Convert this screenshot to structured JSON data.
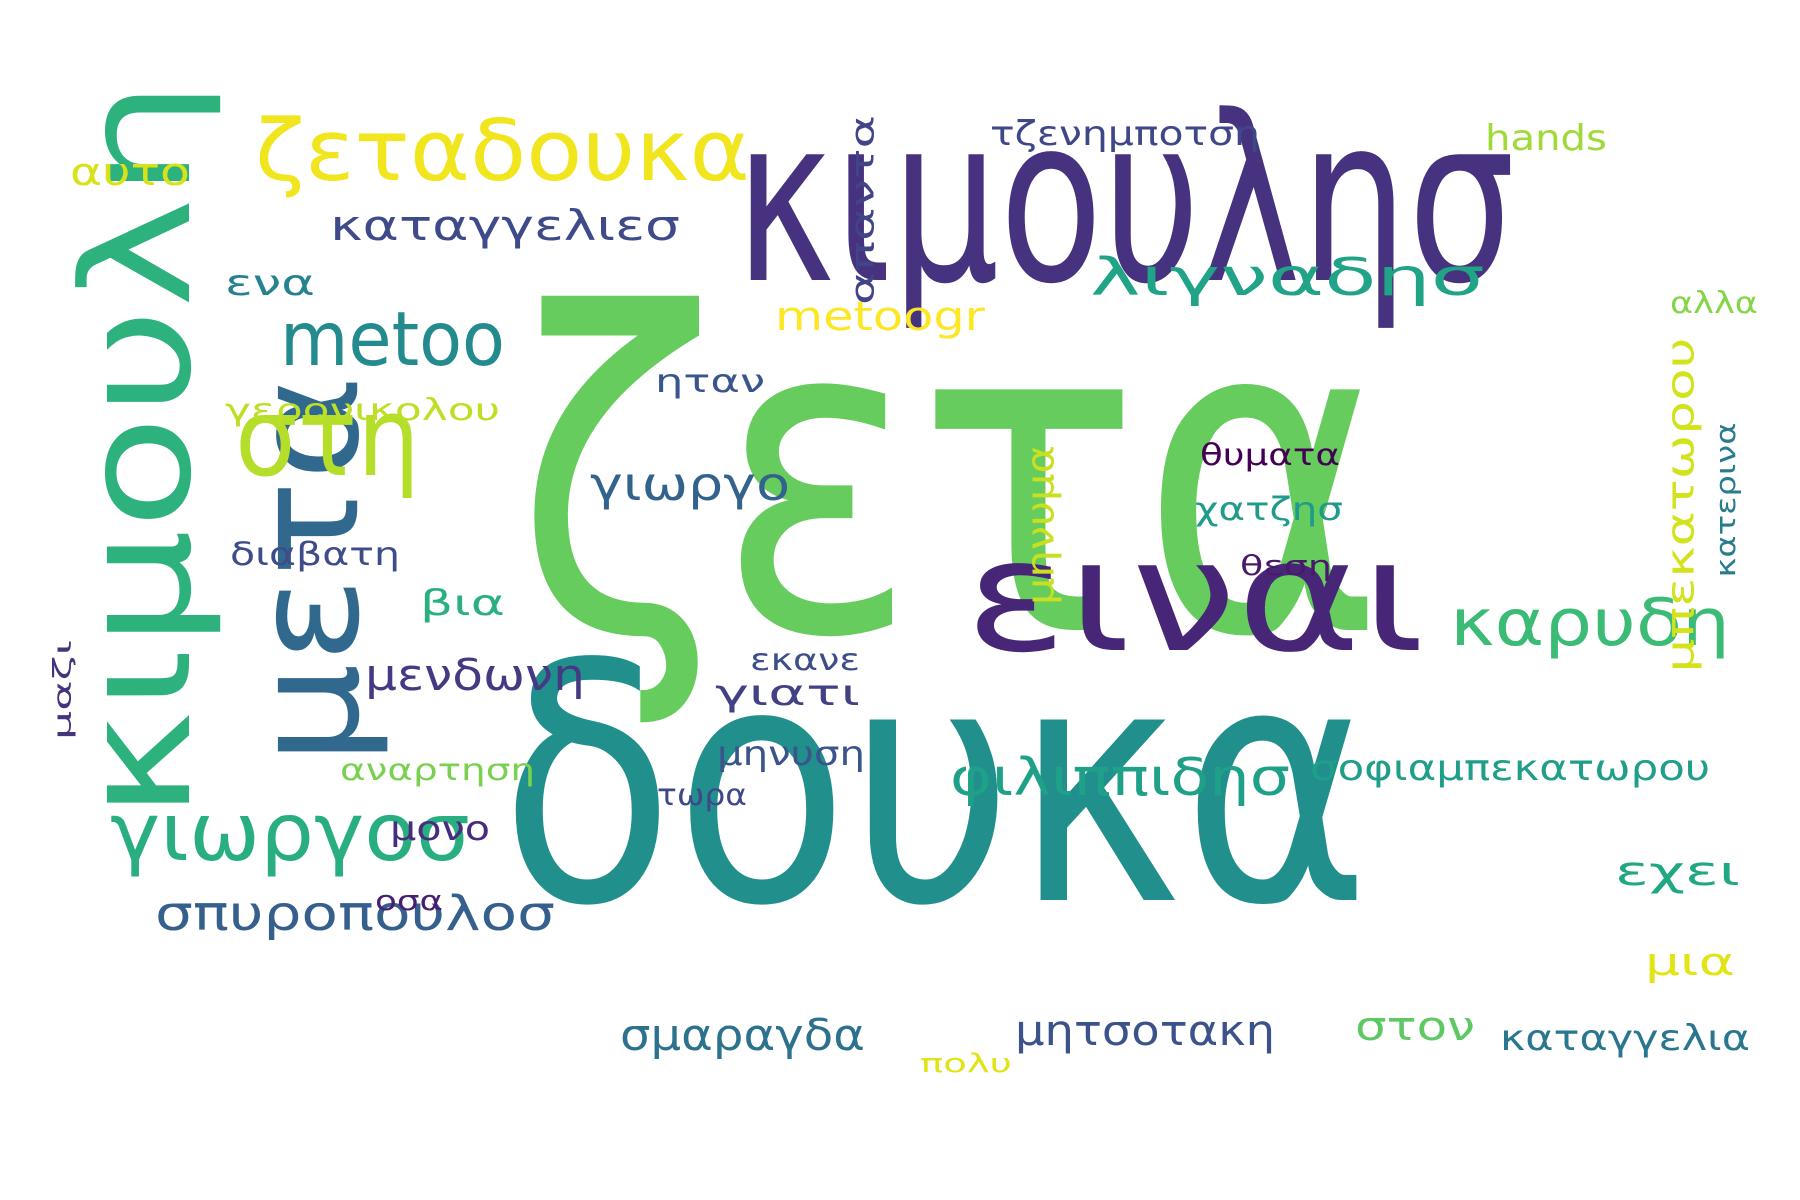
{
  "word_cloud": {
    "words": [
      {
        "text": "ζετα",
        "color": "#66cc5e",
        "rotated": false
      },
      {
        "text": "δουκα",
        "color": "#21908c",
        "rotated": false
      },
      {
        "text": "κιμουλησ",
        "color": "#46327e",
        "rotated": false
      },
      {
        "text": "κιμουλη",
        "color": "#2db27d",
        "rotated": true
      },
      {
        "text": "ειναι",
        "color": "#482677",
        "rotated": false
      },
      {
        "text": "μετα",
        "color": "#31688e",
        "rotated": true
      },
      {
        "text": "στη",
        "color": "#b5de2b",
        "rotated": false
      },
      {
        "text": "ζεταδουκα",
        "color": "#f1e51d",
        "rotated": false
      },
      {
        "text": "γιωργοσ",
        "color": "#28ae80",
        "rotated": false
      },
      {
        "text": "metoo",
        "color": "#238a8d",
        "rotated": false
      },
      {
        "text": "λιγναδησ",
        "color": "#20a386",
        "rotated": false
      },
      {
        "text": "καρυδη",
        "color": "#3bbb75",
        "rotated": false
      },
      {
        "text": "φιλιππιδησ",
        "color": "#1fa088",
        "rotated": false
      },
      {
        "text": "καταγγελιεσ",
        "color": "#3e4a89",
        "rotated": false
      },
      {
        "text": "σπυροπουλοσ",
        "color": "#355f8d",
        "rotated": false
      },
      {
        "text": "γιωργο",
        "color": "#33638d",
        "rotated": false
      },
      {
        "text": "μηνυμα",
        "color": "#c8e020",
        "rotated": true
      },
      {
        "text": "μπεκατωρου",
        "color": "#d2e21b",
        "rotated": true
      },
      {
        "text": "μενδωνη",
        "color": "#443983",
        "rotated": false
      },
      {
        "text": "σμαραγδα",
        "color": "#2c728e",
        "rotated": false
      },
      {
        "text": "μητσοτακη",
        "color": "#3b528b",
        "rotated": false
      },
      {
        "text": "σοφιαμπεκατωρου",
        "color": "#1f9e89",
        "rotated": false
      },
      {
        "text": "εχει",
        "color": "#22a785",
        "rotated": false
      },
      {
        "text": "metoogr",
        "color": "#fde725",
        "rotated": false
      },
      {
        "text": "απαντα",
        "color": "#414487",
        "rotated": true
      },
      {
        "text": "γιατι",
        "color": "#424186",
        "rotated": false
      },
      {
        "text": "καταγγελια",
        "color": "#2a768e",
        "rotated": false
      },
      {
        "text": "στον",
        "color": "#5ec962",
        "rotated": false
      },
      {
        "text": "μια",
        "color": "#e2e418",
        "rotated": false
      },
      {
        "text": "αυτο",
        "color": "#d8e219",
        "rotated": false
      },
      {
        "text": "ενα",
        "color": "#26828e",
        "rotated": false
      },
      {
        "text": "τζενημποτση",
        "color": "#3f4788",
        "rotated": false
      },
      {
        "text": "hands",
        "color": "#a0da39",
        "rotated": false
      },
      {
        "text": "γερονικολου",
        "color": "#bddf26",
        "rotated": false
      },
      {
        "text": "διαβατη",
        "color": "#3e4c8a",
        "rotated": false
      },
      {
        "text": "βια",
        "color": "#2ab07f",
        "rotated": false
      },
      {
        "text": "ηταν",
        "color": "#39568c",
        "rotated": false
      },
      {
        "text": "μηνυση",
        "color": "#3a548c",
        "rotated": false
      },
      {
        "text": "αναρτηση",
        "color": "#7ad151",
        "rotated": false
      },
      {
        "text": "μονο",
        "color": "#472d7b",
        "rotated": false
      },
      {
        "text": "εκανε",
        "color": "#3d4e8a",
        "rotated": false
      },
      {
        "text": "τωρα",
        "color": "#3f4889",
        "rotated": false
      },
      {
        "text": "θυματα",
        "color": "#440154",
        "rotated": false
      },
      {
        "text": "χατζησ",
        "color": "#1e9b8a",
        "rotated": false
      },
      {
        "text": "θεση",
        "color": "#48186a",
        "rotated": false
      },
      {
        "text": "αλλα",
        "color": "#86d549",
        "rotated": false
      },
      {
        "text": "κατερινα",
        "color": "#297b8e",
        "rotated": true
      },
      {
        "text": "μαζι",
        "color": "#46337e",
        "rotated": true
      },
      {
        "text": "οσα",
        "color": "#481f70",
        "rotated": false
      },
      {
        "text": "πολυ",
        "color": "#dfe318",
        "rotated": false
      }
    ]
  }
}
